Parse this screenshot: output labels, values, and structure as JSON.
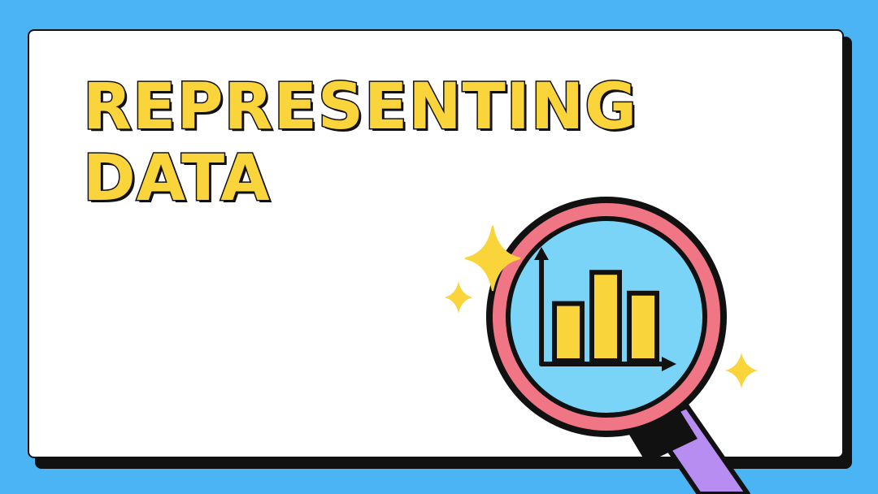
{
  "slide": {
    "title_line1": "REPRESENTING",
    "title_line2": "DATA"
  },
  "illustration": {
    "name": "magnifying-glass-bar-chart",
    "bars": [
      0.55,
      0.85,
      0.65
    ],
    "colors": {
      "background": "#4ab4f5",
      "title_fill": "#f9d43a",
      "lens_ring": "#f07685",
      "lens_inner": "#7ad4f7",
      "handle": "#b88df2",
      "handle_collar": "#111111",
      "bars": "#f9d43a",
      "sparkles": "#f9d43a"
    }
  }
}
